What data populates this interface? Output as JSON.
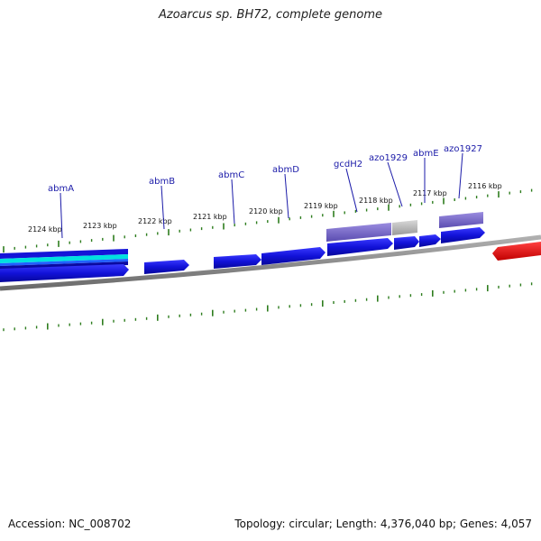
{
  "title": "Azoarcus sp. BH72, complete genome",
  "footer": {
    "accession": "Accession: NC_008702",
    "summary": "Topology: circular; Length: 4,376,040 bp; Genes: 4,057"
  },
  "scale_labels": [
    "2124 kbp",
    "2123 kbp",
    "2122 kbp",
    "2121 kbp",
    "2120 kbp",
    "2119 kbp",
    "2118 kbp",
    "2117 kbp",
    "2116 kbp"
  ],
  "gene_labels": [
    "abmA",
    "abmB",
    "abmC",
    "abmD",
    "gcdH2",
    "azo1929",
    "abmE",
    "azo1927"
  ],
  "colors": {
    "backbone": "#808080",
    "tick": "#2e7d1e",
    "gene_forward": "#1414d8",
    "gene_reverse": "#e01010",
    "feature_purple": "#7565c8",
    "feature_gray": "#b4b4b4",
    "feature_cyan": "#00e0e0",
    "label": "#1a1aa8"
  }
}
